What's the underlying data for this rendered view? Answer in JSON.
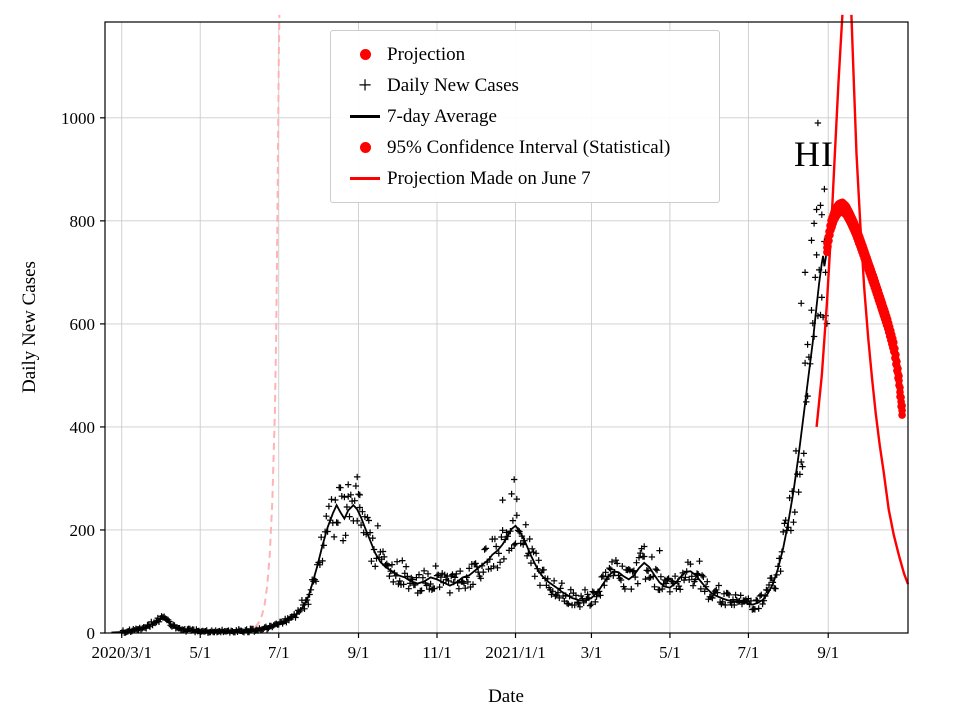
{
  "figure": {
    "xlabel": "Date",
    "ylabel": "Daily New Cases",
    "bg": "#ffffff",
    "grid_color": "#cccccc",
    "axis_color": "#000000"
  },
  "legend": {
    "items": [
      {
        "type": "dot",
        "color": "#ff0000",
        "label": "Projection"
      },
      {
        "type": "plus",
        "color": "#000000",
        "label": "Daily New Cases"
      },
      {
        "type": "line",
        "color": "#000000",
        "label": "7-day Average"
      },
      {
        "type": "dot",
        "color": "#ff0000",
        "label": "95% Confidence Interval (Statistical)"
      },
      {
        "type": "line",
        "color": "#ff0000",
        "label": "Projection Made on June 7"
      }
    ]
  },
  "annotation": {
    "text": "HI",
    "x_day": 538,
    "y_value": 930
  },
  "chart_data": {
    "type": "line+scatter",
    "title": "",
    "xlabel": "Date",
    "ylabel": "Daily New Cases",
    "x_unit": "days since 2020-03-01",
    "x_domain": [
      -13,
      611
    ],
    "y_domain": [
      0,
      1186
    ],
    "grid": true,
    "legend_position": "upper center-left",
    "x_ticks": [
      {
        "day": 0,
        "label": "2020/3/1"
      },
      {
        "day": 61,
        "label": "5/1"
      },
      {
        "day": 122,
        "label": "7/1"
      },
      {
        "day": 184,
        "label": "9/1"
      },
      {
        "day": 245,
        "label": "11/1"
      },
      {
        "day": 306,
        "label": "2021/1/1"
      },
      {
        "day": 365,
        "label": "3/1"
      },
      {
        "day": 426,
        "label": "5/1"
      },
      {
        "day": 487,
        "label": "7/1"
      },
      {
        "day": 549,
        "label": "9/1"
      }
    ],
    "y_ticks": [
      0,
      200,
      400,
      600,
      800,
      1000
    ],
    "series": {
      "avg7": {
        "name": "7-day Average",
        "color": "#000000",
        "keypoints": [
          [
            -8,
            1
          ],
          [
            0,
            2
          ],
          [
            8,
            4
          ],
          [
            15,
            8
          ],
          [
            22,
            15
          ],
          [
            28,
            25
          ],
          [
            32,
            28
          ],
          [
            36,
            21
          ],
          [
            40,
            13
          ],
          [
            45,
            8
          ],
          [
            50,
            6
          ],
          [
            55,
            5
          ],
          [
            60,
            4
          ],
          [
            70,
            3
          ],
          [
            80,
            3
          ],
          [
            90,
            3
          ],
          [
            95,
            4
          ],
          [
            100,
            5
          ],
          [
            105,
            6
          ],
          [
            110,
            8
          ],
          [
            115,
            11
          ],
          [
            120,
            15
          ],
          [
            125,
            21
          ],
          [
            130,
            27
          ],
          [
            135,
            34
          ],
          [
            140,
            48
          ],
          [
            145,
            70
          ],
          [
            148,
            95
          ],
          [
            152,
            130
          ],
          [
            156,
            170
          ],
          [
            160,
            205
          ],
          [
            164,
            232
          ],
          [
            167,
            248
          ],
          [
            170,
            234
          ],
          [
            173,
            222
          ],
          [
            176,
            238
          ],
          [
            180,
            248
          ],
          [
            183,
            240
          ],
          [
            186,
            224
          ],
          [
            189,
            205
          ],
          [
            193,
            180
          ],
          [
            197,
            155
          ],
          [
            201,
            138
          ],
          [
            205,
            128
          ],
          [
            210,
            120
          ],
          [
            215,
            112
          ],
          [
            220,
            108
          ],
          [
            225,
            100
          ],
          [
            230,
            96
          ],
          [
            235,
            100
          ],
          [
            240,
            108
          ],
          [
            245,
            104
          ],
          [
            250,
            98
          ],
          [
            255,
            92
          ],
          [
            260,
            98
          ],
          [
            265,
            108
          ],
          [
            270,
            112
          ],
          [
            275,
            122
          ],
          [
            280,
            132
          ],
          [
            285,
            142
          ],
          [
            288,
            152
          ],
          [
            292,
            160
          ],
          [
            296,
            172
          ],
          [
            300,
            188
          ],
          [
            303,
            202
          ],
          [
            306,
            208
          ],
          [
            309,
            198
          ],
          [
            312,
            185
          ],
          [
            315,
            168
          ],
          [
            318,
            150
          ],
          [
            321,
            135
          ],
          [
            324,
            120
          ],
          [
            327,
            110
          ],
          [
            330,
            102
          ],
          [
            334,
            95
          ],
          [
            338,
            88
          ],
          [
            342,
            80
          ],
          [
            346,
            74
          ],
          [
            350,
            68
          ],
          [
            355,
            64
          ],
          [
            360,
            62
          ],
          [
            365,
            68
          ],
          [
            370,
            80
          ],
          [
            374,
            95
          ],
          [
            378,
            110
          ],
          [
            382,
            120
          ],
          [
            386,
            118
          ],
          [
            390,
            110
          ],
          [
            394,
            104
          ],
          [
            398,
            112
          ],
          [
            402,
            126
          ],
          [
            406,
            136
          ],
          [
            410,
            128
          ],
          [
            414,
            112
          ],
          [
            418,
            98
          ],
          [
            422,
            90
          ],
          [
            426,
            88
          ],
          [
            430,
            96
          ],
          [
            434,
            108
          ],
          [
            438,
            118
          ],
          [
            442,
            120
          ],
          [
            446,
            112
          ],
          [
            450,
            100
          ],
          [
            454,
            88
          ],
          [
            458,
            78
          ],
          [
            462,
            72
          ],
          [
            466,
            68
          ],
          [
            470,
            64
          ],
          [
            474,
            62
          ],
          [
            478,
            60
          ],
          [
            482,
            60
          ],
          [
            486,
            58
          ],
          [
            490,
            55
          ],
          [
            494,
            58
          ],
          [
            498,
            64
          ],
          [
            502,
            76
          ],
          [
            506,
            95
          ],
          [
            510,
            125
          ],
          [
            514,
            165
          ],
          [
            518,
            215
          ],
          [
            522,
            275
          ],
          [
            526,
            345
          ],
          [
            530,
            425
          ],
          [
            534,
            505
          ],
          [
            537,
            565
          ],
          [
            540,
            635
          ],
          [
            542,
            680
          ],
          [
            544,
            718
          ],
          [
            545,
            732
          ],
          [
            546,
            712
          ],
          [
            547,
            726
          ],
          [
            548,
            745
          ]
        ]
      },
      "daily_scatter": {
        "name": "Daily New Cases",
        "marker": "plus",
        "color": "#000000",
        "generated_from": "avg7",
        "noise_rel": 0.22,
        "noise_min": 3,
        "seed": 1234,
        "day_range": [
          0,
          548
        ],
        "outliers": [
          [
            176,
            288
          ],
          [
            183,
            303
          ],
          [
            185,
            268
          ],
          [
            296,
            258
          ],
          [
            303,
            270
          ],
          [
            305,
            298
          ],
          [
            307,
            260
          ],
          [
            406,
            168
          ],
          [
            418,
            160
          ],
          [
            528,
            640
          ],
          [
            531,
            700
          ],
          [
            533,
            560
          ],
          [
            536,
            762
          ],
          [
            538,
            795
          ],
          [
            540,
            822
          ],
          [
            541,
            990
          ],
          [
            543,
            830
          ],
          [
            544,
            812
          ],
          [
            546,
            760
          ],
          [
            547,
            700
          ]
        ]
      },
      "projection": {
        "name": "Projection with 95% Confidence Interval",
        "marker": "dot",
        "color": "#ff0000",
        "dot_radius": 3.8,
        "step": 0.8,
        "band_offsets": [
          -9,
          0,
          9
        ],
        "day_range": [
          548,
          607
        ],
        "keypoints": [
          [
            548,
            748
          ],
          [
            551,
            790
          ],
          [
            554,
            812
          ],
          [
            557,
            824
          ],
          [
            560,
            827
          ],
          [
            563,
            820
          ],
          [
            566,
            806
          ],
          [
            570,
            784
          ],
          [
            575,
            750
          ],
          [
            580,
            714
          ],
          [
            585,
            678
          ],
          [
            590,
            640
          ],
          [
            595,
            602
          ],
          [
            600,
            555
          ],
          [
            602,
            525
          ],
          [
            604,
            490
          ],
          [
            605,
            462
          ],
          [
            606,
            440
          ],
          [
            607,
            420
          ]
        ]
      },
      "june7_up": {
        "name": "Projection Made on June 7 (rising branch)",
        "color": "#ff0000",
        "keypoints": [
          [
            540,
            400
          ],
          [
            544,
            500
          ],
          [
            548,
            640
          ],
          [
            551,
            770
          ],
          [
            554,
            920
          ],
          [
            557,
            1070
          ],
          [
            560,
            1200
          ]
        ]
      },
      "june7_down": {
        "name": "Projection Made on June 7 (descending branch)",
        "color": "#ff0000",
        "keypoints": [
          [
            567,
            1200
          ],
          [
            569,
            1060
          ],
          [
            571,
            930
          ],
          [
            574,
            790
          ],
          [
            577,
            670
          ],
          [
            580,
            575
          ],
          [
            583,
            495
          ],
          [
            586,
            425
          ],
          [
            589,
            365
          ],
          [
            592,
            315
          ],
          [
            596,
            240
          ],
          [
            600,
            190
          ],
          [
            604,
            150
          ],
          [
            608,
            115
          ],
          [
            611,
            95
          ]
        ]
      },
      "old_projection": {
        "name": "Earlier projection (dashed, faded)",
        "color": "#ffb3b3",
        "dashed": true,
        "keypoints": [
          [
            95,
            3
          ],
          [
            100,
            6
          ],
          [
            104,
            12
          ],
          [
            107,
            22
          ],
          [
            109,
            35
          ],
          [
            111,
            55
          ],
          [
            113,
            90
          ],
          [
            115,
            150
          ],
          [
            117,
            255
          ],
          [
            119,
            430
          ],
          [
            120,
            580
          ],
          [
            121,
            800
          ],
          [
            122,
            1100
          ],
          [
            122.5,
            1200
          ]
        ]
      },
      "old_projection_solid": {
        "name": "Earlier projection (solid start)",
        "color": "#ffb3b3",
        "keypoints": [
          [
            90,
            2
          ],
          [
            95,
            3
          ],
          [
            100,
            6
          ],
          [
            104,
            12
          ],
          [
            107,
            22
          ]
        ]
      }
    }
  }
}
